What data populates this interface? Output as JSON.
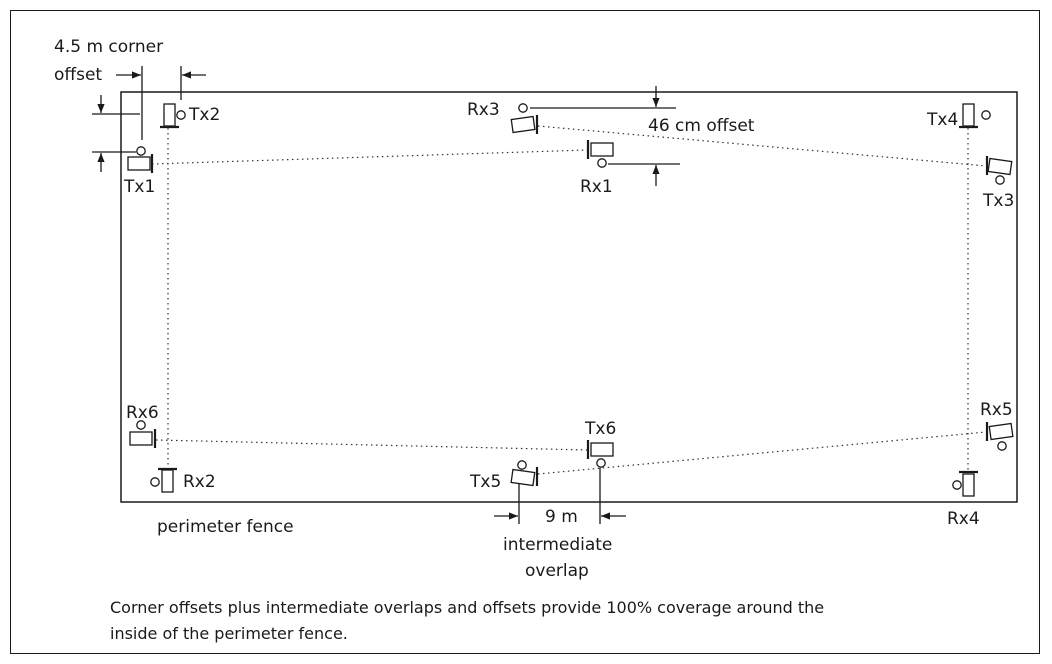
{
  "labels": {
    "corner_offset_line1": "4.5 m corner",
    "corner_offset_line2": "offset",
    "small_offset": "46 cm offset",
    "overlap_distance": "9 m",
    "overlap_line1": "intermediate",
    "overlap_line2": "overlap",
    "fence": "perimeter fence"
  },
  "devices": {
    "tx1": "Tx1",
    "tx2": "Tx2",
    "tx3": "Tx3",
    "tx4": "Tx4",
    "tx5": "Tx5",
    "tx6": "Tx6",
    "rx1": "Rx1",
    "rx2": "Rx2",
    "rx3": "Rx3",
    "rx4": "Rx4",
    "rx5": "Rx5",
    "rx6": "Rx6"
  },
  "caption": "Corner offsets plus intermediate overlaps and offsets provide 100% coverage around the inside of the perimeter fence."
}
